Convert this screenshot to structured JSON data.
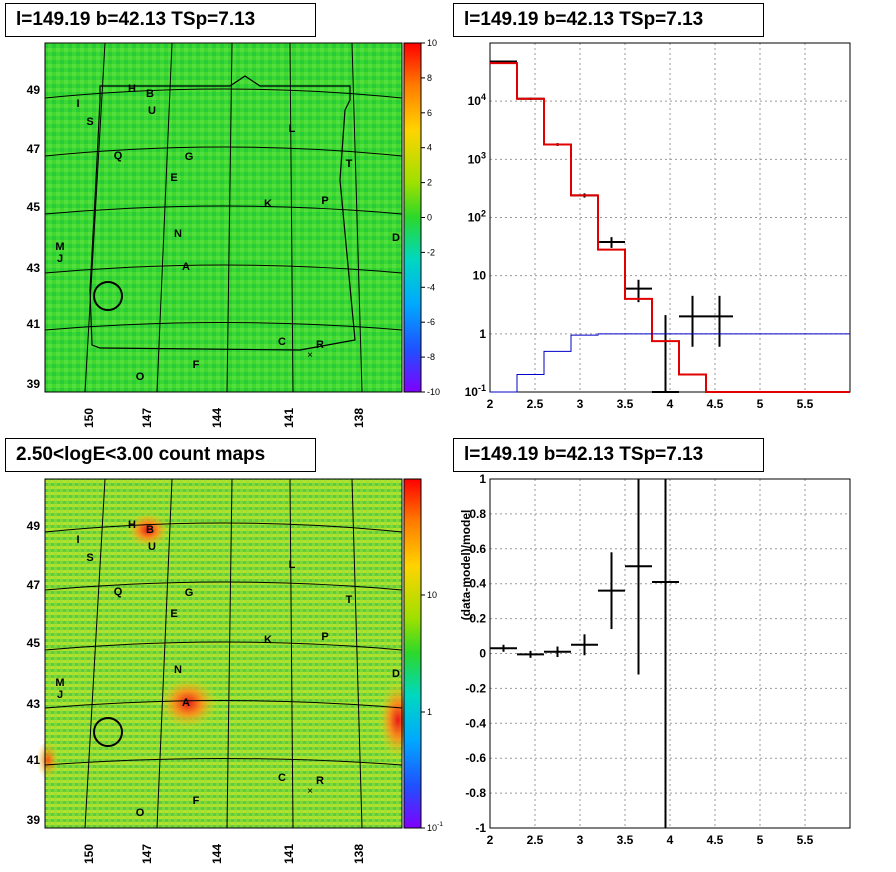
{
  "panels": {
    "tl": {
      "title": "l=149.19 b=42.13 TSp=7.13"
    },
    "tr": {
      "title": "l=149.19 b=42.13 TSp=7.13"
    },
    "bl": {
      "title": "2.50<logE<3.00 count maps"
    },
    "br": {
      "title": "l=149.19 b=42.13 TSp=7.13"
    }
  },
  "maps": {
    "lon_ticks": [
      "150",
      "147",
      "144",
      "141",
      "138"
    ],
    "lat_ticks": [
      "49",
      "47",
      "45",
      "43",
      "41",
      "39"
    ],
    "sources": [
      "H",
      "B",
      "U",
      "I",
      "S",
      "L",
      "Q",
      "G",
      "T",
      "E",
      "K",
      "P",
      "N",
      "M",
      "J",
      "D",
      "A",
      "C",
      "R",
      "O",
      "F"
    ],
    "top_palette": {
      "labels": [
        "10",
        "8",
        "6",
        "4",
        "2",
        "0",
        "-2",
        "-4",
        "-6",
        "-8",
        "-10"
      ],
      "min": -10,
      "max": 10
    },
    "bottom_palette": {
      "labels": [
        "10",
        "1",
        "10-1"
      ],
      "scale": "log"
    },
    "colors": {
      "background": "#2bd82b",
      "hotspot": "#e82020",
      "palette_top": "#ff0000",
      "palette_bottom": "#8000ff"
    }
  },
  "chart_data": [
    {
      "type": "line",
      "title": "l=149.19 b=42.13 TSp=7.13",
      "xlabel": "",
      "ylabel": "",
      "xlim": [
        2,
        6
      ],
      "ylim": [
        0.1,
        100000
      ],
      "yscale": "log",
      "grid": true,
      "x_ticks": [
        "2",
        "2.5",
        "3",
        "3.5",
        "4",
        "4.5",
        "5",
        "5.5"
      ],
      "y_ticks": [
        "10-1",
        "1",
        "10",
        "102",
        "103",
        "104"
      ],
      "series": [
        {
          "name": "",
          "color": "#000000",
          "kind": "points",
          "x": [
            2.15,
            2.45,
            2.75,
            3.05,
            3.35,
            3.65,
            3.95,
            4.25,
            4.55
          ],
          "xerr": 0.15,
          "y": [
            48000,
            11000,
            1800,
            240,
            38,
            6,
            0.1,
            2,
            2
          ],
          "yerr_low": [
            2000,
            500,
            100,
            20,
            8,
            2.5,
            0,
            1.4,
            1.4
          ],
          "yerr_high": [
            2000,
            500,
            100,
            20,
            8,
            2.5,
            2,
            2.5,
            2.5
          ]
        },
        {
          "name": "",
          "color": "#e00000",
          "kind": "steps",
          "edges": [
            2.0,
            2.3,
            2.6,
            2.9,
            3.2,
            3.5,
            3.8,
            4.1,
            4.4,
            6.0
          ],
          "values": [
            45000,
            11000,
            1800,
            240,
            28,
            4,
            0.75,
            0.2,
            0.1
          ]
        },
        {
          "name": "",
          "color": "#0000c8",
          "kind": "steps",
          "edges": [
            2.0,
            2.3,
            2.6,
            2.9,
            3.2,
            3.5,
            3.8,
            4.1,
            6.0
          ],
          "values": [
            0.1,
            0.2,
            0.5,
            0.95,
            1.0,
            1.0,
            1.0,
            1.0
          ]
        }
      ]
    },
    {
      "type": "scatter",
      "title": "l=149.19 b=42.13 TSp=7.13",
      "xlabel": "",
      "ylabel": "(data-model)/model",
      "xlim": [
        2,
        6
      ],
      "ylim": [
        -1,
        1
      ],
      "grid": true,
      "x_ticks": [
        "2",
        "2.5",
        "3",
        "3.5",
        "4",
        "4.5",
        "5",
        "5.5"
      ],
      "y_ticks": [
        "-1",
        "-0.8",
        "-0.6",
        "-0.4",
        "-0.2",
        "0",
        "0.2",
        "0.4",
        "0.6",
        "0.8",
        "1"
      ],
      "series": [
        {
          "name": "",
          "color": "#000000",
          "x": [
            2.15,
            2.45,
            2.75,
            3.05,
            3.35,
            3.65,
            3.95
          ],
          "xerr": 0.15,
          "y": [
            0.03,
            -0.005,
            0.01,
            0.05,
            0.36,
            0.5,
            0.41
          ],
          "yerr_low": [
            0.02,
            0.02,
            0.03,
            0.06,
            0.22,
            0.62,
            1.5
          ],
          "yerr_high": [
            0.02,
            0.02,
            0.03,
            0.06,
            0.22,
            0.6,
            0.6
          ]
        }
      ]
    }
  ]
}
